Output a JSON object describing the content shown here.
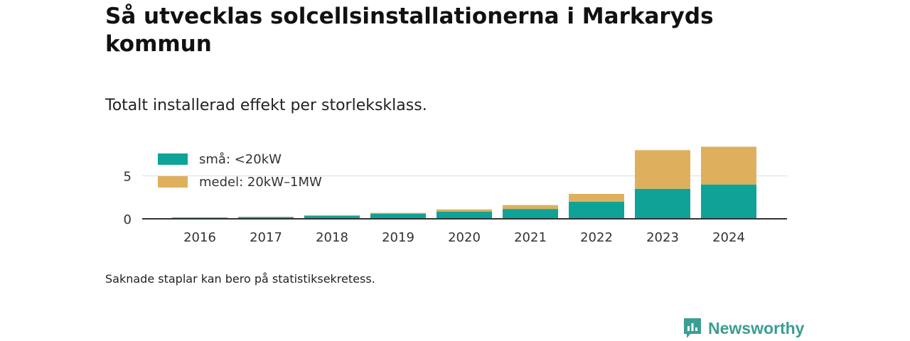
{
  "header": {
    "title": "Så utvecklas solcellsinstallationerna i Markaryds kommun",
    "subtitle": "Totalt installerad effekt per storleksklass."
  },
  "footer": {
    "note": "Saknade staplar kan bero på statistiksekretess.",
    "brand": "Newsworthy"
  },
  "colors": {
    "small": "#0fa398",
    "medium": "#deb05e",
    "grid": "#dddddd",
    "axis": "#333333",
    "brand": "#3b9e93"
  },
  "chart_data": {
    "type": "bar",
    "stacked": true,
    "categories": [
      "2016",
      "2017",
      "2018",
      "2019",
      "2020",
      "2021",
      "2022",
      "2023",
      "2024"
    ],
    "series": [
      {
        "name": "små: <20kW",
        "values": [
          0.15,
          0.2,
          0.35,
          0.6,
          0.85,
          1.15,
          2.0,
          3.5,
          4.0
        ]
      },
      {
        "name": "medel: 20kW–1MW",
        "values": [
          0.02,
          0.03,
          0.08,
          0.1,
          0.25,
          0.45,
          0.9,
          4.5,
          4.4
        ]
      }
    ],
    "yticks": [
      0,
      5
    ],
    "ylim": [
      0,
      8.4
    ],
    "grid": true,
    "legend": "top-left"
  }
}
